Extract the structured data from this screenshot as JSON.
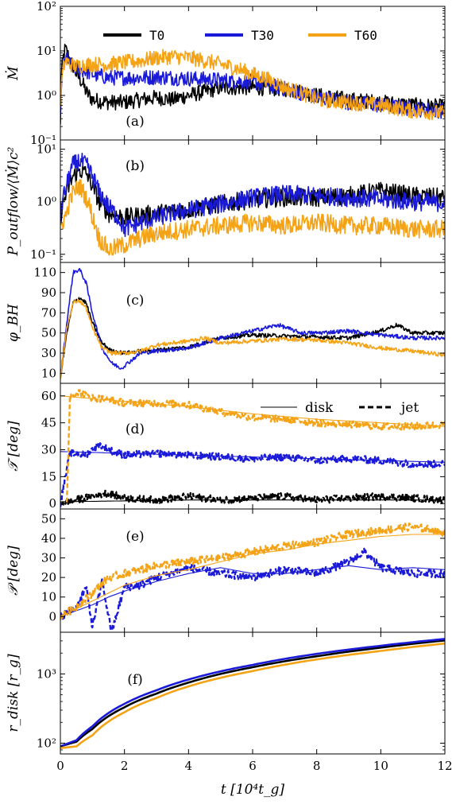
{
  "colors": {
    "T0": "#000000",
    "T30": "#1a1ad8",
    "T60": "#f5a316"
  },
  "chart_data": {
    "type": "line",
    "layout": "stacked-panels-shared-x",
    "x": {
      "label": "t [10⁴t_g]",
      "lim": [
        0,
        12
      ],
      "ticks": [
        0,
        2,
        4,
        6,
        8,
        10,
        12
      ]
    },
    "legend": {
      "location": "top",
      "entries": [
        "T0",
        "T30",
        "T60"
      ]
    },
    "panels": [
      {
        "letter": "(a)",
        "ylabel": "Ṁ",
        "scale": "log",
        "ylim": [
          0.1,
          100
        ],
        "yticks": [
          0.1,
          1,
          10,
          100
        ],
        "yticklabels": [
          "10⁻¹",
          "10⁰",
          "10¹",
          "10²"
        ],
        "series": [
          {
            "name": "T0",
            "x": [
              0,
              0.15,
              0.3,
              0.5,
              0.8,
              1,
              1.5,
              2,
              2.5,
              3,
              3.5,
              4,
              4.5,
              5,
              6,
              7,
              8,
              9,
              10,
              11,
              12
            ],
            "y": [
              0.2,
              11,
              6,
              3,
              1.2,
              0.8,
              0.7,
              0.7,
              0.8,
              0.9,
              0.8,
              1.0,
              1.2,
              1.5,
              1.5,
              1.4,
              1.0,
              0.8,
              0.7,
              0.6,
              0.55
            ]
          },
          {
            "name": "T30",
            "x": [
              0,
              0.15,
              0.3,
              0.5,
              0.8,
              1,
              1.5,
              2,
              2.5,
              3,
              3.5,
              4,
              4.5,
              5,
              6,
              7,
              8,
              9,
              10,
              11,
              12
            ],
            "y": [
              0.3,
              7,
              5,
              4,
              3.5,
              3,
              2.5,
              2.5,
              2.5,
              2.6,
              2.5,
              2.4,
              2.3,
              2.2,
              2.0,
              1.4,
              0.9,
              0.7,
              0.6,
              0.5,
              0.45
            ]
          },
          {
            "name": "T60",
            "x": [
              0,
              0.15,
              0.3,
              0.5,
              0.8,
              1,
              1.5,
              2,
              2.5,
              3,
              3.5,
              4,
              4.5,
              5,
              6,
              7,
              8,
              9,
              10,
              11,
              12
            ],
            "y": [
              0.4,
              6,
              5,
              4.5,
              5,
              5,
              5,
              5.5,
              6,
              7,
              7.5,
              7,
              6,
              5,
              3,
              1.5,
              0.8,
              0.7,
              0.6,
              0.45,
              0.4
            ]
          }
        ]
      },
      {
        "letter": "(b)",
        "ylabel": "P_outflow/⟨Ṁ⟩c²",
        "scale": "log",
        "ylim": [
          0.07,
          15
        ],
        "yticks": [
          0.1,
          1,
          10
        ],
        "yticklabels": [
          "10⁻¹",
          "10⁰",
          "10¹"
        ],
        "series": [
          {
            "name": "T0",
            "x": [
              0,
              0.2,
              0.4,
              0.6,
              0.8,
              1,
              1.2,
              1.5,
              2,
              2.5,
              3,
              4,
              5,
              6,
              7,
              8,
              9,
              10,
              11,
              12
            ],
            "y": [
              0.5,
              1.5,
              3,
              4,
              3.5,
              2,
              1,
              0.6,
              0.5,
              0.55,
              0.6,
              0.7,
              0.9,
              1.1,
              1.2,
              1.2,
              1.3,
              1.6,
              1.3,
              1.2
            ]
          },
          {
            "name": "T30",
            "x": [
              0,
              0.2,
              0.4,
              0.6,
              0.8,
              1,
              1.2,
              1.5,
              2,
              2.5,
              3,
              4,
              5,
              6,
              7,
              8,
              9,
              10,
              11,
              12
            ],
            "y": [
              0.5,
              2,
              5,
              6,
              5,
              3,
              1.5,
              0.8,
              0.3,
              0.4,
              0.5,
              0.7,
              0.9,
              1.2,
              1.4,
              1.3,
              1.2,
              1.1,
              1.0,
              0.95
            ]
          },
          {
            "name": "T60",
            "x": [
              0,
              0.2,
              0.4,
              0.6,
              0.8,
              1,
              1.2,
              1.5,
              2,
              2.5,
              3,
              4,
              5,
              6,
              7,
              8,
              9,
              10,
              11,
              12
            ],
            "y": [
              0.3,
              0.6,
              1.5,
              2,
              1.2,
              0.5,
              0.2,
              0.12,
              0.15,
              0.2,
              0.25,
              0.3,
              0.35,
              0.4,
              0.35,
              0.4,
              0.35,
              0.35,
              0.3,
              0.3
            ]
          }
        ]
      },
      {
        "letter": "(c)",
        "ylabel": "φ_BH",
        "scale": "linear",
        "ylim": [
          0,
          120
        ],
        "yticks": [
          10,
          30,
          50,
          70,
          90,
          110
        ],
        "series": [
          {
            "name": "T0",
            "x": [
              0,
              0.2,
              0.4,
              0.6,
              0.8,
              1,
              1.3,
              1.6,
              2,
              2.5,
              3,
              4,
              5,
              6,
              7,
              8,
              9,
              10,
              10.5,
              11,
              12
            ],
            "y": [
              5,
              50,
              80,
              85,
              80,
              60,
              40,
              32,
              30,
              32,
              33,
              36,
              45,
              48,
              47,
              46,
              45,
              52,
              58,
              50,
              50
            ]
          },
          {
            "name": "T30",
            "x": [
              0,
              0.2,
              0.4,
              0.6,
              0.8,
              1,
              1.3,
              1.6,
              1.9,
              2.5,
              3,
              4,
              5,
              6,
              6.8,
              7.5,
              8,
              9,
              10,
              11,
              12
            ],
            "y": [
              5,
              60,
              110,
              113,
              100,
              70,
              35,
              20,
              15,
              30,
              32,
              35,
              45,
              52,
              58,
              50,
              50,
              52,
              48,
              45,
              45
            ]
          },
          {
            "name": "T60",
            "x": [
              0,
              0.2,
              0.4,
              0.6,
              0.8,
              1,
              1.3,
              1.6,
              2,
              2.5,
              3,
              3.5,
              4,
              4.5,
              5,
              6,
              7,
              8,
              9,
              10,
              11,
              12
            ],
            "y": [
              5,
              55,
              80,
              82,
              75,
              55,
              35,
              30,
              30,
              32,
              38,
              40,
              42,
              45,
              40,
              42,
              44,
              43,
              40,
              35,
              32,
              28
            ]
          }
        ]
      },
      {
        "letter": "(d)",
        "ylabel": "𝒯 [deg]",
        "scale": "linear",
        "ylim": [
          -3,
          67
        ],
        "yticks": [
          0,
          15,
          30,
          45,
          60
        ],
        "linestyle_legend": [
          "disk",
          "jet"
        ],
        "series": [
          {
            "name": "T0 disk",
            "style": "solid",
            "x": [
              0,
              2,
              4,
              6,
              8,
              10,
              12
            ],
            "y": [
              1,
              1.5,
              2,
              2,
              2,
              2,
              2
            ]
          },
          {
            "name": "T0 jet",
            "style": "dashed",
            "x": [
              0,
              0.5,
              1,
              1.5,
              2,
              3,
              4,
              5,
              6,
              7,
              8,
              9,
              10,
              11,
              12
            ],
            "y": [
              0,
              2,
              4,
              6,
              3,
              2,
              4,
              2,
              3,
              4,
              2,
              3,
              4,
              3,
              2
            ]
          },
          {
            "name": "T30 disk",
            "style": "solid",
            "x": [
              0,
              2,
              4,
              6,
              8,
              10,
              12
            ],
            "y": [
              29,
              28,
              27,
              26,
              25,
              24,
              23
            ]
          },
          {
            "name": "T30 jet",
            "style": "dashed",
            "x": [
              0,
              0.3,
              0.8,
              1.2,
              1.5,
              2,
              3,
              4,
              5,
              6,
              7,
              8,
              9,
              10,
              11,
              12
            ],
            "y": [
              0,
              28,
              27,
              33,
              30,
              27,
              28,
              27,
              26,
              25,
              26,
              24,
              25,
              24,
              22,
              22
            ]
          },
          {
            "name": "T60 disk",
            "style": "solid",
            "x": [
              0,
              2,
              4,
              6,
              8,
              10,
              12
            ],
            "y": [
              60,
              57,
              54,
              50,
              47,
              45,
              43
            ]
          },
          {
            "name": "T60 jet",
            "style": "dashed",
            "x": [
              0.2,
              0.3,
              0.6,
              1,
              1.5,
              2,
              3,
              4,
              5,
              6,
              7,
              8,
              9,
              10,
              11,
              12
            ],
            "y": [
              0,
              60,
              62,
              59,
              58,
              56,
              56,
              55,
              51,
              48,
              47,
              45,
              44,
              43,
              43,
              44
            ]
          }
        ]
      },
      {
        "letter": "(e)",
        "ylabel": "𝒫 [deg]",
        "scale": "linear",
        "ylim": [
          -8,
          55
        ],
        "yticks": [
          0,
          10,
          20,
          30,
          40,
          50
        ],
        "series": [
          {
            "name": "T30 disk",
            "style": "solid",
            "x": [
              0,
              0.5,
              1,
              1.5,
              2,
              3,
              4,
              5,
              6,
              7,
              8,
              9,
              10,
              11,
              12
            ],
            "y": [
              0,
              3,
              6,
              10,
              13,
              18,
              22,
              25,
              22,
              22,
              24,
              26,
              24,
              25,
              24
            ]
          },
          {
            "name": "T30 jet",
            "style": "dashed",
            "x": [
              0,
              0.5,
              0.8,
              1,
              1.3,
              1.6,
              2,
              2.5,
              3,
              4,
              5,
              6,
              7,
              8,
              9,
              9.5,
              10,
              11,
              12
            ],
            "y": [
              0,
              5,
              15,
              -5,
              18,
              -8,
              15,
              16,
              20,
              25,
              22,
              20,
              24,
              22,
              28,
              33,
              25,
              22,
              22
            ]
          },
          {
            "name": "T60 disk",
            "style": "solid",
            "x": [
              0,
              1,
              2,
              3,
              4,
              5,
              6,
              7,
              8,
              9,
              10,
              11,
              12
            ],
            "y": [
              0,
              8,
              16,
              21,
              24,
              28,
              32,
              34,
              37,
              39,
              41,
              42,
              42
            ]
          },
          {
            "name": "T60 jet",
            "style": "dashed",
            "x": [
              0,
              0.5,
              1,
              1.5,
              2,
              3,
              4,
              5,
              6,
              7,
              8,
              9,
              10,
              11,
              12
            ],
            "y": [
              0,
              5,
              12,
              20,
              22,
              26,
              28,
              30,
              33,
              36,
              38,
              42,
              44,
              46,
              43
            ]
          }
        ]
      },
      {
        "letter": "(f)",
        "ylabel": "r_disk [r_g]",
        "scale": "log",
        "ylim": [
          70,
          4000
        ],
        "yticks": [
          100,
          1000
        ],
        "yticklabels": [
          "10²",
          "10³"
        ],
        "series": [
          {
            "name": "T0",
            "x": [
              0,
              0.5,
              1,
              2,
              3,
              4,
              6,
              8,
              10,
              12
            ],
            "y": [
              90,
              105,
              160,
              330,
              520,
              750,
              1250,
              1800,
              2400,
              3050
            ]
          },
          {
            "name": "T30",
            "x": [
              0,
              0.5,
              1,
              2,
              3,
              4,
              6,
              8,
              10,
              12
            ],
            "y": [
              90,
              110,
              175,
              370,
              580,
              830,
              1350,
              1950,
              2550,
              3200
            ]
          },
          {
            "name": "T60",
            "x": [
              0,
              0.5,
              1,
              2,
              3,
              4,
              6,
              8,
              10,
              12
            ],
            "y": [
              85,
              90,
              130,
              280,
              450,
              660,
              1100,
              1620,
              2150,
              2750
            ]
          }
        ]
      }
    ]
  }
}
